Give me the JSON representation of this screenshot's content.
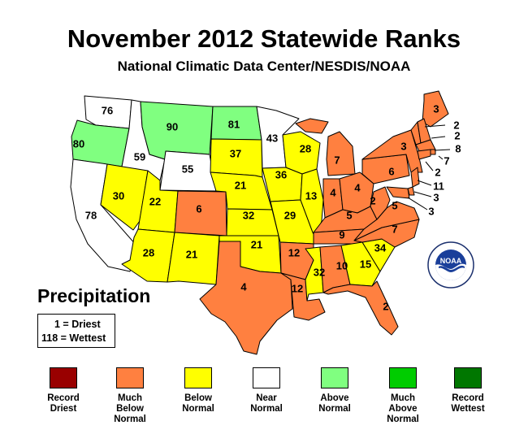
{
  "title": "November 2012 Statewide Ranks",
  "subtitle": "National Climatic Data Center/NESDIS/NOAA",
  "panel_title": "Precipitation",
  "key": {
    "driest": "1 = Driest",
    "wettest": "118 = Wettest"
  },
  "colors": {
    "record_driest": "#990000",
    "much_below": "#ff8040",
    "below": "#ffff00",
    "near": "#ffffff",
    "above": "#80ff80",
    "much_above": "#00cc00",
    "record_wettest": "#007700"
  },
  "legend": [
    {
      "label": "Record Driest",
      "color": "#990000"
    },
    {
      "label": "Much Below Normal",
      "color": "#ff8040"
    },
    {
      "label": "Below Normal",
      "color": "#ffff00"
    },
    {
      "label": "Near Normal",
      "color": "#ffffff"
    },
    {
      "label": "Above Normal",
      "color": "#80ff80"
    },
    {
      "label": "Much Above Normal",
      "color": "#00cc00"
    },
    {
      "label": "Record Wettest",
      "color": "#007700"
    }
  ],
  "states": {
    "WA": {
      "rank": "76",
      "category": "near"
    },
    "OR": {
      "rank": "80",
      "category": "above"
    },
    "CA": {
      "rank": "78",
      "category": "near"
    },
    "ID": {
      "rank": "59",
      "category": "near"
    },
    "NV": {
      "rank": "30",
      "category": "below"
    },
    "MT": {
      "rank": "90",
      "category": "above"
    },
    "WY": {
      "rank": "55",
      "category": "near"
    },
    "UT": {
      "rank": "22",
      "category": "below"
    },
    "CO": {
      "rank": "6",
      "category": "much_below"
    },
    "AZ": {
      "rank": "28",
      "category": "below"
    },
    "NM": {
      "rank": "21",
      "category": "below"
    },
    "ND": {
      "rank": "81",
      "category": "above"
    },
    "SD": {
      "rank": "37",
      "category": "below"
    },
    "NE": {
      "rank": "21",
      "category": "below"
    },
    "KS": {
      "rank": "32",
      "category": "below"
    },
    "OK": {
      "rank": "21",
      "category": "below"
    },
    "TX": {
      "rank": "4",
      "category": "much_below"
    },
    "MN": {
      "rank": "43",
      "category": "near"
    },
    "IA": {
      "rank": "36",
      "category": "below"
    },
    "MO": {
      "rank": "29",
      "category": "below"
    },
    "AR": {
      "rank": "12",
      "category": "much_below"
    },
    "LA": {
      "rank": "12",
      "category": "much_below"
    },
    "WI": {
      "rank": "28",
      "category": "below"
    },
    "IL": {
      "rank": "13",
      "category": "below"
    },
    "MI": {
      "rank": "7",
      "category": "much_below"
    },
    "IN": {
      "rank": "4",
      "category": "much_below"
    },
    "OH": {
      "rank": "4",
      "category": "much_below"
    },
    "KY": {
      "rank": "5",
      "category": "much_below"
    },
    "TN": {
      "rank": "9",
      "category": "much_below"
    },
    "MS": {
      "rank": "32",
      "category": "below"
    },
    "AL": {
      "rank": "10",
      "category": "much_below"
    },
    "GA": {
      "rank": "15",
      "category": "below"
    },
    "FL": {
      "rank": "2",
      "category": "much_below"
    },
    "SC": {
      "rank": "34",
      "category": "below"
    },
    "NC": {
      "rank": "7",
      "category": "much_below"
    },
    "VA": {
      "rank": "5",
      "category": "much_below"
    },
    "WV": {
      "rank": "2",
      "category": "much_below"
    },
    "PA": {
      "rank": "6",
      "category": "much_below"
    },
    "NY": {
      "rank": "3",
      "category": "much_below"
    },
    "ME": {
      "rank": "3",
      "category": "much_below"
    },
    "VT": {
      "rank": "2",
      "category": "much_below"
    },
    "NH": {
      "rank": "2",
      "category": "much_below"
    },
    "MA": {
      "rank": "8",
      "category": "much_below"
    },
    "RI": {
      "rank": "7",
      "category": "much_below"
    },
    "CT": {
      "rank": "2",
      "category": "much_below"
    },
    "NJ": {
      "rank": "11",
      "category": "much_below"
    },
    "DE": {
      "rank": "3",
      "category": "much_below"
    },
    "MD": {
      "rank": "3",
      "category": "much_below"
    }
  }
}
